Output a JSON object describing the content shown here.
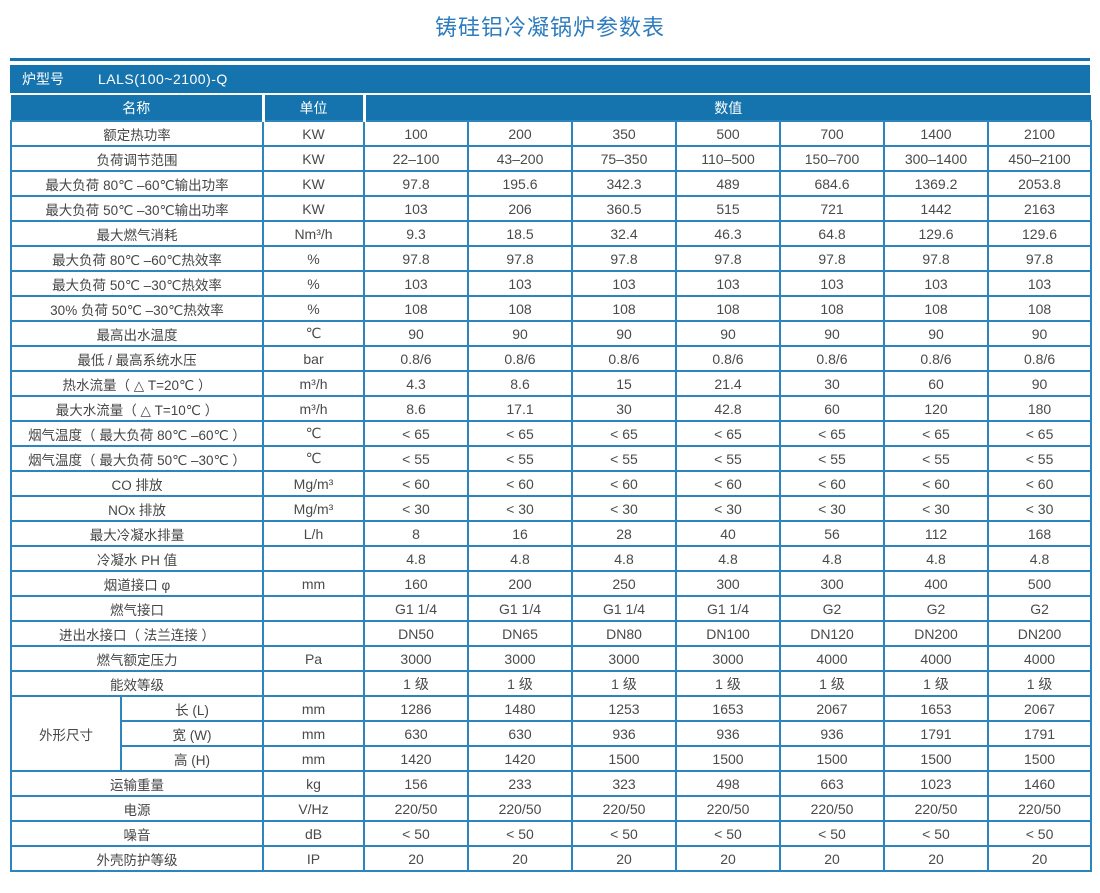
{
  "title": "铸硅铝冷凝锅炉参数表",
  "colors": {
    "accent_blue": "#1573ad",
    "grid_blue": "#2e85bd",
    "title_blue": "#2e7cbe",
    "text_gray": "#4a4a4a"
  },
  "table": {
    "model_label": "炉型号",
    "model_value": "LALS(100~2100)-Q",
    "col_name": "名称",
    "col_unit": "单位",
    "col_value": "数值",
    "rows": [
      {
        "name": "额定热功率",
        "unit": "KW",
        "values": [
          "100",
          "200",
          "350",
          "500",
          "700",
          "1400",
          "2100"
        ]
      },
      {
        "name": "负荷调节范围",
        "unit": "KW",
        "values": [
          "22–100",
          "43–200",
          "75–350",
          "110–500",
          "150–700",
          "300–1400",
          "450–2100"
        ]
      },
      {
        "name": "最大负荷 80℃ –60℃输出功率",
        "unit": "KW",
        "values": [
          "97.8",
          "195.6",
          "342.3",
          "489",
          "684.6",
          "1369.2",
          "2053.8"
        ]
      },
      {
        "name": "最大负荷 50℃ –30℃输出功率",
        "unit": "KW",
        "values": [
          "103",
          "206",
          "360.5",
          "515",
          "721",
          "1442",
          "2163"
        ]
      },
      {
        "name": "最大燃气消耗",
        "unit": "Nm³/h",
        "values": [
          "9.3",
          "18.5",
          "32.4",
          "46.3",
          "64.8",
          "129.6",
          "129.6"
        ]
      },
      {
        "name": "最大负荷 80℃ –60℃热效率",
        "unit": "%",
        "values": [
          "97.8",
          "97.8",
          "97.8",
          "97.8",
          "97.8",
          "97.8",
          "97.8"
        ]
      },
      {
        "name": "最大负荷 50℃ –30℃热效率",
        "unit": "%",
        "values": [
          "103",
          "103",
          "103",
          "103",
          "103",
          "103",
          "103"
        ]
      },
      {
        "name": "30% 负荷 50℃ –30℃热效率",
        "unit": "%",
        "values": [
          "108",
          "108",
          "108",
          "108",
          "108",
          "108",
          "108"
        ]
      },
      {
        "name": "最高出水温度",
        "unit": "℃",
        "values": [
          "90",
          "90",
          "90",
          "90",
          "90",
          "90",
          "90"
        ]
      },
      {
        "name": "最低 / 最高系统水压",
        "unit": "bar",
        "values": [
          "0.8/6",
          "0.8/6",
          "0.8/6",
          "0.8/6",
          "0.8/6",
          "0.8/6",
          "0.8/6"
        ]
      },
      {
        "name": "热水流量（ △ T=20℃ ）",
        "unit": "m³/h",
        "values": [
          "4.3",
          "8.6",
          "15",
          "21.4",
          "30",
          "60",
          "90"
        ]
      },
      {
        "name": "最大水流量（ △ T=10℃ ）",
        "unit": "m³/h",
        "values": [
          "8.6",
          "17.1",
          "30",
          "42.8",
          "60",
          "120",
          "180"
        ]
      },
      {
        "name": "烟气温度（ 最大负荷 80℃ –60℃ ）",
        "unit": "℃",
        "values": [
          "< 65",
          "< 65",
          "< 65",
          "< 65",
          "< 65",
          "< 65",
          "< 65"
        ]
      },
      {
        "name": "烟气温度（ 最大负荷 50℃ –30℃ ）",
        "unit": "℃",
        "values": [
          "< 55",
          "< 55",
          "< 55",
          "< 55",
          "< 55",
          "< 55",
          "< 55"
        ]
      },
      {
        "name": "CO 排放",
        "unit": "Mg/m³",
        "values": [
          "< 60",
          "< 60",
          "< 60",
          "< 60",
          "< 60",
          "< 60",
          "< 60"
        ]
      },
      {
        "name": "NOx 排放",
        "unit": "Mg/m³",
        "values": [
          "< 30",
          "< 30",
          "< 30",
          "< 30",
          "< 30",
          "< 30",
          "< 30"
        ]
      },
      {
        "name": "最大冷凝水排量",
        "unit": "L/h",
        "values": [
          "8",
          "16",
          "28",
          "40",
          "56",
          "112",
          "168"
        ]
      },
      {
        "name": "冷凝水 PH 值",
        "unit": "",
        "values": [
          "4.8",
          "4.8",
          "4.8",
          "4.8",
          "4.8",
          "4.8",
          "4.8"
        ]
      },
      {
        "name": "烟道接口 φ",
        "unit": "mm",
        "values": [
          "160",
          "200",
          "250",
          "300",
          "300",
          "400",
          "500"
        ]
      },
      {
        "name": "燃气接口",
        "unit": "",
        "values": [
          "G1 1/4",
          "G1 1/4",
          "G1 1/4",
          "G1 1/4",
          "G2",
          "G2",
          "G2"
        ]
      },
      {
        "name": "进出水接口（ 法兰连接 ）",
        "unit": "",
        "values": [
          "DN50",
          "DN65",
          "DN80",
          "DN100",
          "DN120",
          "DN200",
          "DN200"
        ]
      },
      {
        "name": "燃气额定压力",
        "unit": "Pa",
        "values": [
          "3000",
          "3000",
          "3000",
          "3000",
          "4000",
          "4000",
          "4000"
        ]
      },
      {
        "name": "能效等级",
        "unit": "",
        "values": [
          "1 级",
          "1 级",
          "1 级",
          "1 级",
          "1 级",
          "1 级",
          "1 级"
        ]
      },
      {
        "group": "外形尺寸",
        "name": "长 (L)",
        "unit": "mm",
        "values": [
          "1286",
          "1480",
          "1253",
          "1653",
          "2067",
          "1653",
          "2067"
        ]
      },
      {
        "in_group": true,
        "name": "宽 (W)",
        "unit": "mm",
        "values": [
          "630",
          "630",
          "936",
          "936",
          "936",
          "1791",
          "1791"
        ]
      },
      {
        "in_group": true,
        "name": "高 (H)",
        "unit": "mm",
        "values": [
          "1420",
          "1420",
          "1500",
          "1500",
          "1500",
          "1500",
          "1500"
        ]
      },
      {
        "name": "运输重量",
        "unit": "kg",
        "values": [
          "156",
          "233",
          "323",
          "498",
          "663",
          "1023",
          "1460"
        ]
      },
      {
        "name": "电源",
        "unit": "V/Hz",
        "values": [
          "220/50",
          "220/50",
          "220/50",
          "220/50",
          "220/50",
          "220/50",
          "220/50"
        ]
      },
      {
        "name": "噪音",
        "unit": "dB",
        "values": [
          "< 50",
          "< 50",
          "< 50",
          "< 50",
          "< 50",
          "< 50",
          "< 50"
        ]
      },
      {
        "name": "外壳防护等级",
        "unit": "IP",
        "values": [
          "20",
          "20",
          "20",
          "20",
          "20",
          "20",
          "20"
        ]
      }
    ]
  }
}
